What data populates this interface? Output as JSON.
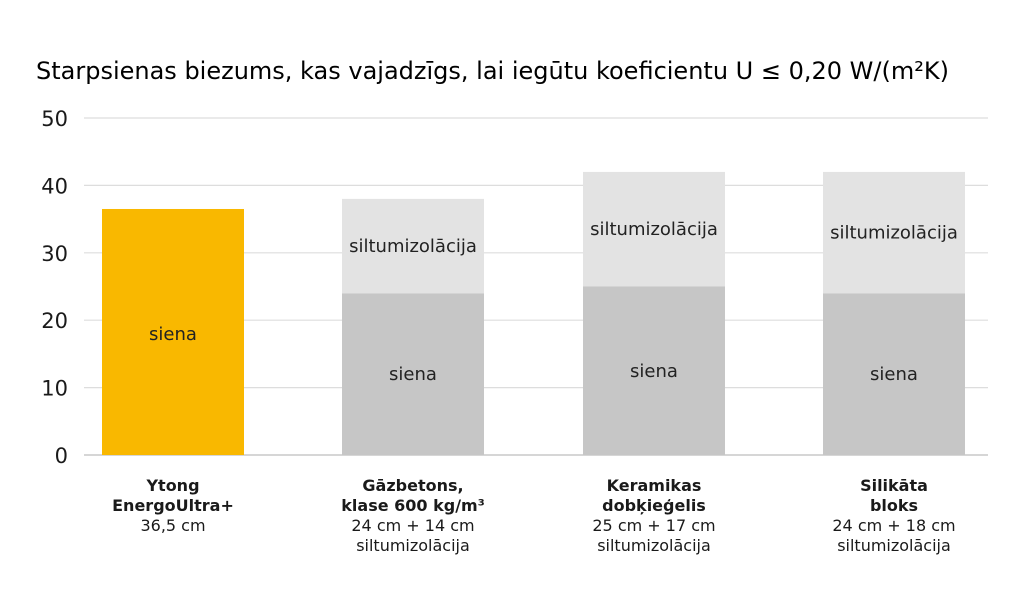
{
  "chart_data": {
    "type": "bar",
    "stacked": true,
    "title": "Starpsienas biezums, kas vajadzīgs, lai iegūtu koeficientu U ≤ 0,20 W/(m²K)",
    "xlabel": "",
    "ylabel": "",
    "ylim": [
      0,
      50
    ],
    "yticks": [
      0,
      10,
      20,
      30,
      40,
      50
    ],
    "grid": true,
    "legend": "none",
    "categories": [
      {
        "lines_bold": [
          "Ytong",
          "EnergoUltra+"
        ],
        "lines": [
          "36,5 cm"
        ]
      },
      {
        "lines_bold": [
          "Gāzbetons,",
          "klase 600 kg/m³"
        ],
        "lines": [
          "24 cm + 14 cm",
          "siltumizolācija"
        ]
      },
      {
        "lines_bold": [
          "Keramikas",
          "dobķieģelis"
        ],
        "lines": [
          "25 cm + 17 cm",
          "siltumizolācija"
        ]
      },
      {
        "lines_bold": [
          "Silikāta",
          "bloks"
        ],
        "lines": [
          "24 cm + 18 cm",
          "siltumizolācija"
        ]
      }
    ],
    "series": [
      {
        "segment_label": "siena",
        "values": [
          36.5,
          24,
          25,
          24
        ],
        "colors": [
          "#f9b800",
          "#c6c6c6",
          "#c6c6c6",
          "#c6c6c6"
        ]
      },
      {
        "segment_label": "siltumizolācija",
        "values": [
          0,
          14,
          17,
          18
        ],
        "colors": [
          "#e3e3e3",
          "#e3e3e3",
          "#e3e3e3",
          "#e3e3e3"
        ]
      }
    ]
  }
}
